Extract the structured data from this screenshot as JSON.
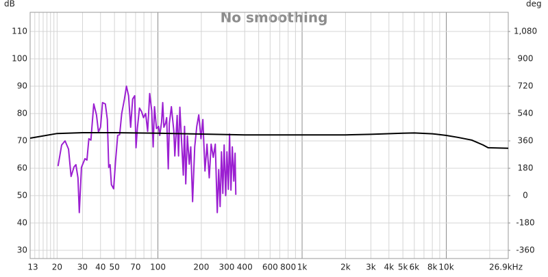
{
  "chart_data": {
    "type": "line",
    "title": "No smoothing",
    "ylabel": "dB",
    "y2label": "deg",
    "xscale": "log",
    "grid": true,
    "xlim": [
      13,
      26900
    ],
    "xticks": [
      13,
      20,
      30,
      40,
      50,
      70,
      100,
      200,
      300,
      400,
      600,
      800,
      {
        "value": 1000,
        "label": "1k"
      },
      {
        "value": 2000,
        "label": "2k"
      },
      {
        "value": 3000,
        "label": "3k"
      },
      {
        "value": 4000,
        "label": "4k"
      },
      {
        "value": 5000,
        "label": "5k"
      },
      {
        "value": 6000,
        "label": "6k"
      },
      {
        "value": 8000,
        "label": "8k"
      },
      {
        "value": 10000,
        "label": "10k"
      },
      {
        "value": 26900,
        "label": "26.9kHz"
      }
    ],
    "xminor_ticks": [
      14,
      15,
      16,
      17,
      18,
      19,
      60,
      80,
      90,
      500,
      700,
      900,
      7000,
      9000,
      20000
    ],
    "ylim": [
      27,
      117
    ],
    "yticks": [
      30,
      40,
      50,
      60,
      70,
      80,
      90,
      100,
      110
    ],
    "y2lim": [
      -414,
      1206
    ],
    "y2ticks": [
      -360,
      -180,
      0,
      180,
      360,
      540,
      720,
      900,
      {
        "value": 1080,
        "label": "1,080"
      }
    ],
    "series": [
      {
        "color": "#9b1fd1",
        "x": [
          20.3,
          21.5,
          22.7,
          24,
          25,
          26.2,
          27,
          27.9,
          28.5,
          29.5,
          31.2,
          32.2,
          33.2,
          34.3,
          35.9,
          37.5,
          38.7,
          40,
          41.3,
          43.2,
          44.6,
          45.6,
          46.6,
          47.6,
          49.3,
          50.8,
          52.6,
          54.3,
          56.1,
          58.6,
          60.5,
          62.6,
          64.7,
          66.8,
          69,
          70.5,
          72,
          74.5,
          76.9,
          79.5,
          82.2,
          84.9,
          87.7,
          90.6,
          92.7,
          94.7,
          97.8,
          101,
          103,
          106,
          108,
          110,
          113,
          115,
          118,
          120,
          124,
          129,
          131,
          136,
          139,
          142,
          145,
          150,
          153,
          156,
          160,
          165,
          169,
          174,
          180,
          186,
          192,
          199,
          205,
          212,
          219,
          227,
          234,
          242,
          250,
          258,
          264,
          270,
          276,
          282,
          288,
          295,
          301,
          308,
          314,
          321,
          328,
          336,
          343,
          347
        ],
        "values": [
          60.8,
          68.5,
          70,
          67,
          57,
          60.5,
          61.3,
          56.5,
          43.8,
          60.3,
          63.5,
          63,
          70.8,
          70.3,
          83.5,
          79.5,
          73.3,
          75,
          84,
          83.5,
          77.8,
          60.3,
          61.3,
          54,
          52.5,
          62.3,
          72,
          72.3,
          80,
          85.3,
          90,
          86.5,
          75,
          85.3,
          86.5,
          67.5,
          74.5,
          82,
          80.8,
          78.5,
          80,
          73.5,
          87.3,
          81,
          67.8,
          82.5,
          74.5,
          75.3,
          72,
          76.8,
          84,
          75,
          76.5,
          78.5,
          59.8,
          76.3,
          82.5,
          73.5,
          64.5,
          79.3,
          64.5,
          82.3,
          72.8,
          57.5,
          75.3,
          54.3,
          71.8,
          61.5,
          67.8,
          47.8,
          67.8,
          75.3,
          79.5,
          70.8,
          77.8,
          59,
          68.8,
          56.5,
          68.8,
          64,
          68.8,
          43.8,
          59.5,
          46,
          66,
          50.8,
          68.5,
          50,
          66,
          52.3,
          72.5,
          52,
          67.8,
          55.3,
          65.5,
          50.3
        ]
      },
      {
        "color": "#000000",
        "x": [
          13,
          20,
          30,
          50,
          100,
          200,
          400,
          1000,
          2000,
          3000,
          5000,
          6000,
          8000,
          10000,
          12000,
          15000,
          18000,
          19500,
          26900
        ],
        "values": [
          71,
          72.7,
          73,
          73,
          72.8,
          72.5,
          72.2,
          72.2,
          72.2,
          72.4,
          72.8,
          72.9,
          72.6,
          72,
          71.3,
          70.3,
          68.5,
          67.5,
          67.3
        ]
      }
    ]
  }
}
